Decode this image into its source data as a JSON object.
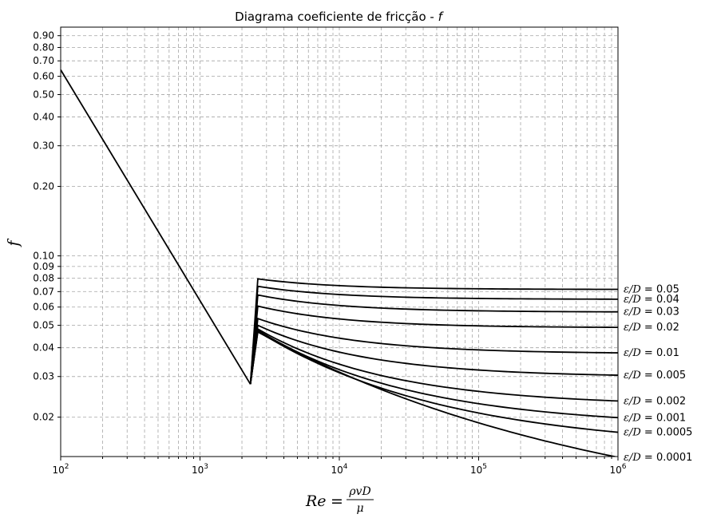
{
  "chart_data": {
    "type": "line",
    "title": "Diagrama coeficiente de fricção - ",
    "title_var": "f",
    "xlabel": "Re = ρvD/μ",
    "xlabel_parts": {
      "lhs": "Re",
      "eq": "=",
      "num": "ρvD",
      "den": "μ"
    },
    "ylabel": "f",
    "xscale": "log",
    "yscale": "log",
    "xlim": [
      100,
      1000000
    ],
    "ylim": [
      0.0135,
      0.98
    ],
    "grid": true,
    "x_ticks": [
      {
        "value": 100,
        "base": "10",
        "exp": "2"
      },
      {
        "value": 1000,
        "base": "10",
        "exp": "3"
      },
      {
        "value": 10000,
        "base": "10",
        "exp": "4"
      },
      {
        "value": 100000,
        "base": "10",
        "exp": "5"
      },
      {
        "value": 1000000,
        "base": "10",
        "exp": "6"
      }
    ],
    "y_ticks": [
      {
        "value": 0.02,
        "label": "0.02"
      },
      {
        "value": 0.03,
        "label": "0.03"
      },
      {
        "value": 0.04,
        "label": "0.04"
      },
      {
        "value": 0.05,
        "label": "0.05"
      },
      {
        "value": 0.06,
        "label": "0.06"
      },
      {
        "value": 0.07,
        "label": "0.07"
      },
      {
        "value": 0.08,
        "label": "0.08"
      },
      {
        "value": 0.09,
        "label": "0.09"
      },
      {
        "value": 0.1,
        "label": "0.10"
      },
      {
        "value": 0.2,
        "label": "0.20"
      },
      {
        "value": 0.3,
        "label": "0.30"
      },
      {
        "value": 0.4,
        "label": "0.40"
      },
      {
        "value": 0.5,
        "label": "0.50"
      },
      {
        "value": 0.6,
        "label": "0.60"
      },
      {
        "value": 0.7,
        "label": "0.70"
      },
      {
        "value": 0.8,
        "label": "0.80"
      },
      {
        "value": 0.9,
        "label": "0.90"
      }
    ],
    "laminar": {
      "x": [
        100,
        2300
      ],
      "y": [
        0.64,
        0.0278
      ]
    },
    "transition_re": 2300,
    "turbulent_start_re": 2600,
    "series": [
      {
        "name": "ε/D = 0.05",
        "roughness": 0.05,
        "label_prefix": "ε/D",
        "label_value": " = 0.05",
        "x": [
          2600,
          1000000
        ],
        "y": [
          0.0795,
          0.0716
        ]
      },
      {
        "name": "ε/D = 0.04",
        "roughness": 0.04,
        "label_prefix": "ε/D",
        "label_value": " = 0.04",
        "x": [
          2600,
          1000000
        ],
        "y": [
          0.0738,
          0.0649
        ]
      },
      {
        "name": "ε/D = 0.03",
        "roughness": 0.03,
        "label_prefix": "ε/D",
        "label_value": " = 0.03",
        "x": [
          2600,
          1000000
        ],
        "y": [
          0.0677,
          0.0572
        ]
      },
      {
        "name": "ε/D = 0.02",
        "roughness": 0.02,
        "label_prefix": "ε/D",
        "label_value": " = 0.02",
        "x": [
          2600,
          1000000
        ],
        "y": [
          0.0606,
          0.049
        ]
      },
      {
        "name": "ε/D = 0.01",
        "roughness": 0.01,
        "label_prefix": "ε/D",
        "label_value": " = 0.01",
        "x": [
          2600,
          1000000
        ],
        "y": [
          0.0535,
          0.038
        ]
      },
      {
        "name": "ε/D = 0.005",
        "roughness": 0.005,
        "label_prefix": "ε/D",
        "label_value": " = 0.005",
        "x": [
          2600,
          1000000
        ],
        "y": [
          0.05,
          0.0304
        ]
      },
      {
        "name": "ε/D = 0.002",
        "roughness": 0.002,
        "label_prefix": "ε/D",
        "label_value": " = 0.002",
        "x": [
          2600,
          1000000
        ],
        "y": [
          0.0482,
          0.0235
        ]
      },
      {
        "name": "ε/D = 0.001",
        "roughness": 0.001,
        "label_prefix": "ε/D",
        "label_value": " = 0.001",
        "x": [
          2600,
          1000000
        ],
        "y": [
          0.0476,
          0.0199
        ]
      },
      {
        "name": "ε/D = 0.0005",
        "roughness": 0.0005,
        "label_prefix": "ε/D",
        "label_value": " = 0.0005",
        "x": [
          2600,
          1000000
        ],
        "y": [
          0.0472,
          0.0172
        ]
      },
      {
        "name": "ε/D = 0.0001",
        "roughness": 0.0001,
        "label_prefix": "ε/D",
        "label_value": " = 0.0001",
        "x": [
          2600,
          1000000
        ],
        "y": [
          0.0468,
          0.0134
        ]
      }
    ]
  }
}
